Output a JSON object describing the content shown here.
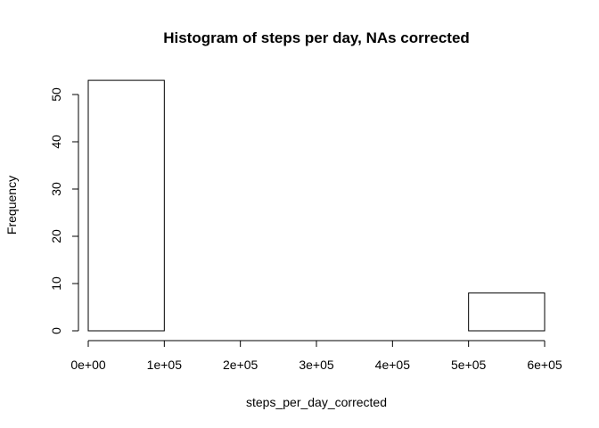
{
  "chart_data": {
    "type": "bar",
    "title": "Histogram of steps per day, NAs corrected",
    "xlabel": "steps_per_day_corrected",
    "ylabel": "Frequency",
    "bins": [
      {
        "start": 0,
        "end": 100000,
        "count": 53
      },
      {
        "start": 100000,
        "end": 200000,
        "count": 0
      },
      {
        "start": 200000,
        "end": 300000,
        "count": 0
      },
      {
        "start": 300000,
        "end": 400000,
        "count": 0
      },
      {
        "start": 400000,
        "end": 500000,
        "count": 0
      },
      {
        "start": 500000,
        "end": 600000,
        "count": 8
      }
    ],
    "xlim": [
      0,
      600000
    ],
    "ylim": [
      0,
      53
    ],
    "x_ticks": [
      0,
      100000,
      200000,
      300000,
      400000,
      500000,
      600000
    ],
    "x_tick_labels": [
      "0e+00",
      "1e+05",
      "2e+05",
      "3e+05",
      "4e+05",
      "5e+05",
      "6e+05"
    ],
    "y_ticks": [
      0,
      10,
      20,
      30,
      40,
      50
    ],
    "y_tick_labels": [
      "0",
      "10",
      "20",
      "30",
      "40",
      "50"
    ],
    "grid": false,
    "legend": "none",
    "bar_fill": "#ffffff",
    "bar_stroke": "#000000"
  }
}
